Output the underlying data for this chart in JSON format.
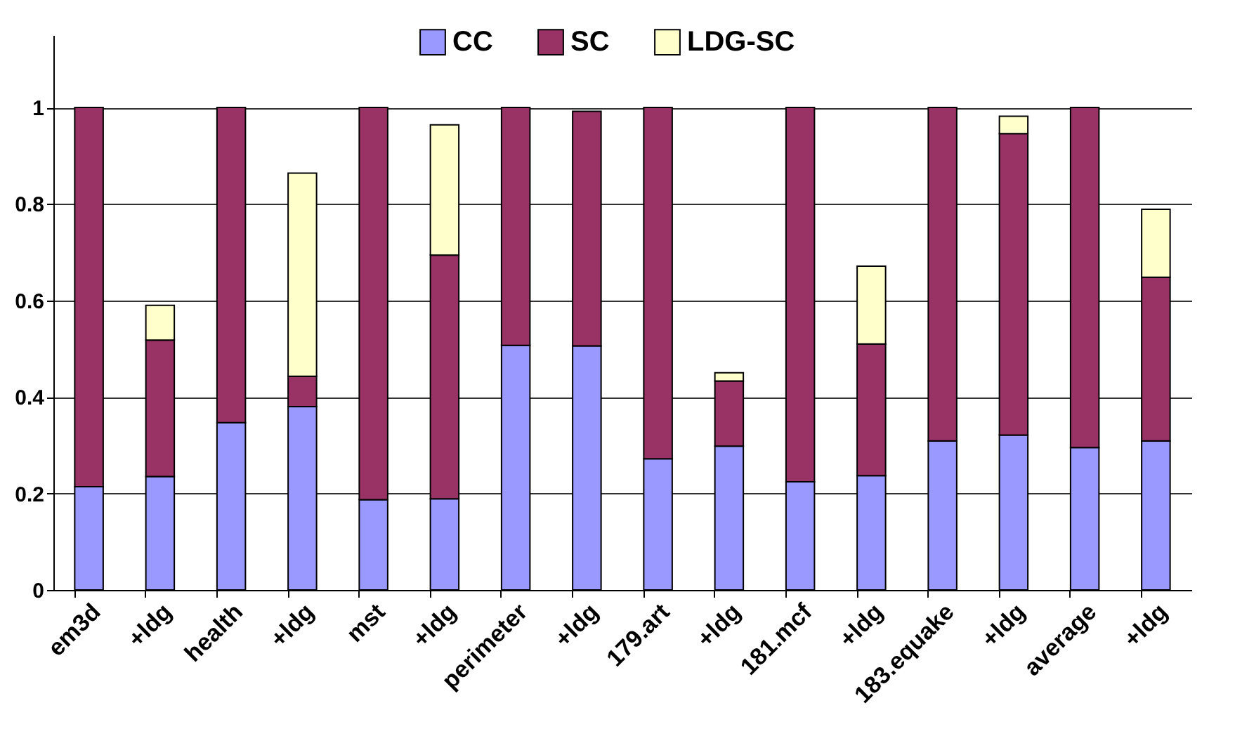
{
  "chart_data": {
    "type": "bar",
    "stacked": true,
    "categories": [
      "em3d",
      "+ldg",
      "health",
      "+ldg",
      "mst",
      "+ldg",
      "perimeter",
      "+ldg",
      "179.art",
      "+ldg",
      "181.mcf",
      "+ldg",
      "183.equake",
      "+ldg",
      "average",
      "+ldg"
    ],
    "series": [
      {
        "name": "CC",
        "color": "#9999ff",
        "values": [
          0.214,
          0.235,
          0.347,
          0.38,
          0.187,
          0.189,
          0.507,
          0.506,
          0.272,
          0.298,
          0.224,
          0.237,
          0.309,
          0.321,
          0.295,
          0.309
        ]
      },
      {
        "name": "SC",
        "color": "#993366",
        "values": [
          0.786,
          0.283,
          0.653,
          0.063,
          0.813,
          0.505,
          0.493,
          0.486,
          0.728,
          0.135,
          0.776,
          0.273,
          0.691,
          0.625,
          0.705,
          0.339
        ]
      },
      {
        "name": "LDG-SC",
        "color": "#ffffcc",
        "values": [
          null,
          0.072,
          null,
          0.421,
          null,
          0.27,
          null,
          null,
          null,
          0.017,
          null,
          0.161,
          null,
          0.036,
          null,
          0.141
        ]
      }
    ],
    "ylim": [
      0,
      1.15
    ],
    "yticks": [
      0,
      0.2,
      0.4,
      0.6,
      0.8,
      1
    ],
    "grid": "y",
    "legend": "top"
  }
}
